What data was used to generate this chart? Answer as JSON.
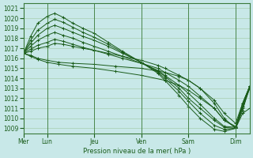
{
  "bg_color": "#c8e8e8",
  "grid_color": "#a0c8a0",
  "line_color": "#1a5c1a",
  "xlabel": "Pression niveau de la mer( hPa )",
  "ylim": [
    1008.5,
    1021.5
  ],
  "yticks": [
    1009,
    1010,
    1011,
    1012,
    1013,
    1014,
    1015,
    1016,
    1017,
    1018,
    1019,
    1020,
    1021
  ],
  "day_labels": [
    "Mer",
    "Lun",
    "Jeu",
    "Ven",
    "Sam",
    "Dim"
  ],
  "day_positions": [
    0,
    0.167,
    0.5,
    0.833,
    1.167,
    1.5
  ],
  "xlim": [
    0,
    1.6
  ],
  "series": [
    {
      "points": [
        [
          0,
          1016.5
        ],
        [
          0.05,
          1016.3
        ],
        [
          0.1,
          1016.0
        ],
        [
          0.167,
          1015.8
        ],
        [
          0.25,
          1015.6
        ],
        [
          0.35,
          1015.5
        ],
        [
          0.5,
          1015.4
        ],
        [
          0.65,
          1015.2
        ],
        [
          0.833,
          1015.0
        ],
        [
          1.0,
          1014.6
        ],
        [
          1.1,
          1014.2
        ],
        [
          1.167,
          1013.8
        ],
        [
          1.25,
          1013.0
        ],
        [
          1.35,
          1011.5
        ],
        [
          1.42,
          1010.0
        ],
        [
          1.5,
          1009.0
        ],
        [
          1.55,
          1010.5
        ],
        [
          1.6,
          1011.0
        ]
      ]
    },
    {
      "points": [
        [
          0,
          1016.5
        ],
        [
          0.05,
          1016.2
        ],
        [
          0.1,
          1015.9
        ],
        [
          0.167,
          1015.6
        ],
        [
          0.25,
          1015.4
        ],
        [
          0.35,
          1015.2
        ],
        [
          0.5,
          1015.0
        ],
        [
          0.65,
          1014.7
        ],
        [
          0.833,
          1014.3
        ],
        [
          1.0,
          1013.8
        ],
        [
          1.1,
          1013.3
        ],
        [
          1.167,
          1012.8
        ],
        [
          1.25,
          1012.0
        ],
        [
          1.35,
          1011.0
        ],
        [
          1.42,
          1009.8
        ],
        [
          1.5,
          1009.1
        ],
        [
          1.55,
          1011.0
        ],
        [
          1.6,
          1013.0
        ]
      ]
    },
    {
      "points": [
        [
          0,
          1016.5
        ],
        [
          0.05,
          1016.7
        ],
        [
          0.1,
          1017.0
        ],
        [
          0.167,
          1017.2
        ],
        [
          0.22,
          1017.5
        ],
        [
          0.28,
          1017.4
        ],
        [
          0.35,
          1017.2
        ],
        [
          0.42,
          1017.0
        ],
        [
          0.5,
          1016.8
        ],
        [
          0.6,
          1016.5
        ],
        [
          0.7,
          1016.2
        ],
        [
          0.833,
          1015.8
        ],
        [
          0.95,
          1015.3
        ],
        [
          1.0,
          1015.0
        ],
        [
          1.1,
          1014.3
        ],
        [
          1.167,
          1013.8
        ],
        [
          1.25,
          1013.0
        ],
        [
          1.35,
          1011.8
        ],
        [
          1.42,
          1010.5
        ],
        [
          1.5,
          1009.5
        ],
        [
          1.55,
          1011.5
        ],
        [
          1.6,
          1013.2
        ]
      ]
    },
    {
      "points": [
        [
          0,
          1016.5
        ],
        [
          0.05,
          1016.9
        ],
        [
          0.1,
          1017.3
        ],
        [
          0.167,
          1017.6
        ],
        [
          0.22,
          1017.9
        ],
        [
          0.28,
          1017.7
        ],
        [
          0.35,
          1017.4
        ],
        [
          0.42,
          1017.1
        ],
        [
          0.5,
          1016.8
        ],
        [
          0.6,
          1016.4
        ],
        [
          0.7,
          1016.0
        ],
        [
          0.833,
          1015.5
        ],
        [
          0.95,
          1015.0
        ],
        [
          1.0,
          1014.6
        ],
        [
          1.1,
          1013.8
        ],
        [
          1.167,
          1013.2
        ],
        [
          1.25,
          1012.2
        ],
        [
          1.35,
          1011.0
        ],
        [
          1.42,
          1009.8
        ],
        [
          1.5,
          1009.2
        ],
        [
          1.55,
          1011.2
        ],
        [
          1.6,
          1013.0
        ]
      ]
    },
    {
      "points": [
        [
          0,
          1016.5
        ],
        [
          0.05,
          1017.2
        ],
        [
          0.1,
          1017.8
        ],
        [
          0.167,
          1018.3
        ],
        [
          0.22,
          1018.6
        ],
        [
          0.28,
          1018.3
        ],
        [
          0.35,
          1018.0
        ],
        [
          0.42,
          1017.6
        ],
        [
          0.5,
          1017.2
        ],
        [
          0.6,
          1016.7
        ],
        [
          0.7,
          1016.2
        ],
        [
          0.833,
          1015.5
        ],
        [
          0.95,
          1014.8
        ],
        [
          1.0,
          1014.3
        ],
        [
          1.1,
          1013.3
        ],
        [
          1.167,
          1012.5
        ],
        [
          1.25,
          1011.4
        ],
        [
          1.35,
          1010.0
        ],
        [
          1.42,
          1009.2
        ],
        [
          1.5,
          1009.1
        ],
        [
          1.55,
          1011.5
        ],
        [
          1.6,
          1013.2
        ]
      ]
    },
    {
      "points": [
        [
          0,
          1016.5
        ],
        [
          0.05,
          1017.5
        ],
        [
          0.1,
          1018.3
        ],
        [
          0.167,
          1019.0
        ],
        [
          0.22,
          1019.3
        ],
        [
          0.28,
          1019.0
        ],
        [
          0.35,
          1018.6
        ],
        [
          0.42,
          1018.2
        ],
        [
          0.5,
          1017.8
        ],
        [
          0.6,
          1017.2
        ],
        [
          0.7,
          1016.5
        ],
        [
          0.833,
          1015.6
        ],
        [
          0.95,
          1014.7
        ],
        [
          1.0,
          1014.2
        ],
        [
          1.1,
          1013.0
        ],
        [
          1.167,
          1012.0
        ],
        [
          1.25,
          1011.0
        ],
        [
          1.35,
          1009.8
        ],
        [
          1.42,
          1009.1
        ],
        [
          1.5,
          1009.0
        ],
        [
          1.55,
          1011.5
        ],
        [
          1.6,
          1013.2
        ]
      ]
    },
    {
      "points": [
        [
          0,
          1016.5
        ],
        [
          0.05,
          1017.8
        ],
        [
          0.1,
          1018.8
        ],
        [
          0.167,
          1019.5
        ],
        [
          0.22,
          1019.9
        ],
        [
          0.28,
          1019.6
        ],
        [
          0.35,
          1019.1
        ],
        [
          0.42,
          1018.6
        ],
        [
          0.5,
          1018.1
        ],
        [
          0.6,
          1017.4
        ],
        [
          0.7,
          1016.6
        ],
        [
          0.833,
          1015.6
        ],
        [
          0.95,
          1014.6
        ],
        [
          1.0,
          1014.0
        ],
        [
          1.1,
          1012.7
        ],
        [
          1.167,
          1011.7
        ],
        [
          1.25,
          1010.5
        ],
        [
          1.35,
          1009.3
        ],
        [
          1.42,
          1008.9
        ],
        [
          1.5,
          1009.0
        ],
        [
          1.55,
          1011.2
        ],
        [
          1.6,
          1013.2
        ]
      ]
    },
    {
      "points": [
        [
          0,
          1016.5
        ],
        [
          0.05,
          1018.2
        ],
        [
          0.1,
          1019.5
        ],
        [
          0.167,
          1020.2
        ],
        [
          0.22,
          1020.5
        ],
        [
          0.28,
          1020.1
        ],
        [
          0.35,
          1019.5
        ],
        [
          0.42,
          1019.0
        ],
        [
          0.5,
          1018.5
        ],
        [
          0.6,
          1017.6
        ],
        [
          0.7,
          1016.7
        ],
        [
          0.833,
          1015.6
        ],
        [
          0.95,
          1014.5
        ],
        [
          1.0,
          1013.8
        ],
        [
          1.1,
          1012.3
        ],
        [
          1.167,
          1011.2
        ],
        [
          1.25,
          1010.0
        ],
        [
          1.35,
          1008.9
        ],
        [
          1.42,
          1008.7
        ],
        [
          1.5,
          1009.0
        ],
        [
          1.55,
          1010.8
        ],
        [
          1.6,
          1013.2
        ]
      ]
    }
  ]
}
